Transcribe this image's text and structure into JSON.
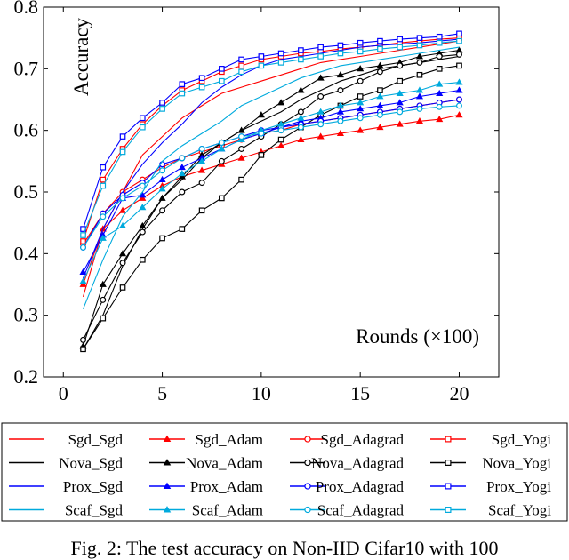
{
  "chart_data": {
    "type": "line",
    "ylabel": "Accuracy",
    "xlabel": "Rounds (×100)",
    "xlim": [
      -1,
      22
    ],
    "ylim": [
      0.2,
      0.8
    ],
    "xticks": [
      0,
      5,
      10,
      15,
      20
    ],
    "yticks": [
      0.2,
      0.3,
      0.4,
      0.5,
      0.6,
      0.7,
      0.8
    ],
    "grid": false,
    "legend_position": "bottom",
    "x": [
      1,
      2,
      3,
      4,
      5,
      6,
      7,
      8,
      9,
      10,
      11,
      12,
      13,
      14,
      15,
      16,
      17,
      18,
      19,
      20
    ],
    "series": [
      {
        "name": "Sgd_Sgd",
        "color": "#ff0000",
        "marker": "none",
        "values": [
          0.33,
          0.44,
          0.5,
          0.56,
          0.59,
          0.62,
          0.64,
          0.66,
          0.67,
          0.68,
          0.69,
          0.7,
          0.71,
          0.715,
          0.72,
          0.725,
          0.73,
          0.735,
          0.74,
          0.745
        ]
      },
      {
        "name": "Sgd_Adam",
        "color": "#ff0000",
        "marker": "triangle",
        "values": [
          0.35,
          0.44,
          0.47,
          0.49,
          0.51,
          0.525,
          0.535,
          0.545,
          0.555,
          0.565,
          0.575,
          0.585,
          0.59,
          0.595,
          0.6,
          0.605,
          0.61,
          0.615,
          0.618,
          0.625
        ]
      },
      {
        "name": "Sgd_Adagrad",
        "color": "#ff0000",
        "marker": "circle",
        "values": [
          0.415,
          0.465,
          0.5,
          0.52,
          0.54,
          0.555,
          0.565,
          0.575,
          0.585,
          0.595,
          0.6,
          0.61,
          0.615,
          0.62,
          0.625,
          0.63,
          0.635,
          0.64,
          0.645,
          0.65
        ]
      },
      {
        "name": "Sgd_Yogi",
        "color": "#ff0000",
        "marker": "square",
        "values": [
          0.42,
          0.52,
          0.57,
          0.61,
          0.64,
          0.665,
          0.68,
          0.695,
          0.705,
          0.715,
          0.72,
          0.725,
          0.728,
          0.732,
          0.735,
          0.738,
          0.742,
          0.745,
          0.748,
          0.75
        ]
      },
      {
        "name": "Nova_Sgd",
        "color": "#000000",
        "marker": "none",
        "values": [
          0.245,
          0.3,
          0.38,
          0.44,
          0.49,
          0.52,
          0.555,
          0.58,
          0.6,
          0.615,
          0.63,
          0.65,
          0.665,
          0.68,
          0.69,
          0.7,
          0.705,
          0.71,
          0.715,
          0.72
        ]
      },
      {
        "name": "Nova_Adam",
        "color": "#000000",
        "marker": "triangle",
        "values": [
          0.25,
          0.35,
          0.4,
          0.445,
          0.49,
          0.525,
          0.56,
          0.58,
          0.6,
          0.625,
          0.645,
          0.665,
          0.685,
          0.69,
          0.7,
          0.705,
          0.71,
          0.72,
          0.725,
          0.73
        ]
      },
      {
        "name": "Nova_Adagrad",
        "color": "#000000",
        "marker": "circle",
        "values": [
          0.26,
          0.325,
          0.385,
          0.435,
          0.47,
          0.5,
          0.515,
          0.55,
          0.57,
          0.59,
          0.61,
          0.63,
          0.655,
          0.665,
          0.68,
          0.695,
          0.705,
          0.71,
          0.72,
          0.723
        ]
      },
      {
        "name": "Nova_Yogi",
        "color": "#000000",
        "marker": "square",
        "values": [
          0.245,
          0.295,
          0.345,
          0.39,
          0.425,
          0.44,
          0.47,
          0.49,
          0.52,
          0.56,
          0.585,
          0.605,
          0.625,
          0.64,
          0.655,
          0.665,
          0.68,
          0.69,
          0.7,
          0.705
        ]
      },
      {
        "name": "Prox_Sgd",
        "color": "#0000ff",
        "marker": "none",
        "values": [
          0.36,
          0.44,
          0.5,
          0.545,
          0.58,
          0.61,
          0.645,
          0.67,
          0.69,
          0.705,
          0.715,
          0.72,
          0.725,
          0.73,
          0.735,
          0.738,
          0.74,
          0.742,
          0.745,
          0.748
        ]
      },
      {
        "name": "Prox_Adam",
        "color": "#0000ff",
        "marker": "triangle",
        "values": [
          0.37,
          0.43,
          0.49,
          0.495,
          0.52,
          0.54,
          0.555,
          0.57,
          0.585,
          0.595,
          0.605,
          0.615,
          0.62,
          0.63,
          0.635,
          0.64,
          0.645,
          0.655,
          0.66,
          0.665
        ]
      },
      {
        "name": "Prox_Adagrad",
        "color": "#0000ff",
        "marker": "circle",
        "values": [
          0.41,
          0.465,
          0.495,
          0.515,
          0.545,
          0.555,
          0.57,
          0.58,
          0.59,
          0.6,
          0.605,
          0.61,
          0.615,
          0.62,
          0.625,
          0.63,
          0.635,
          0.64,
          0.645,
          0.65
        ]
      },
      {
        "name": "Prox_Yogi",
        "color": "#0000ff",
        "marker": "square",
        "values": [
          0.44,
          0.54,
          0.59,
          0.62,
          0.645,
          0.675,
          0.685,
          0.7,
          0.715,
          0.72,
          0.725,
          0.73,
          0.735,
          0.738,
          0.742,
          0.745,
          0.748,
          0.75,
          0.752,
          0.757
        ]
      },
      {
        "name": "Scaf_Sgd",
        "color": "#00aadd",
        "marker": "none",
        "values": [
          0.31,
          0.39,
          0.46,
          0.5,
          0.55,
          0.575,
          0.595,
          0.615,
          0.64,
          0.655,
          0.67,
          0.685,
          0.695,
          0.705,
          0.71,
          0.715,
          0.72,
          0.725,
          0.73,
          0.735
        ]
      },
      {
        "name": "Scaf_Adam",
        "color": "#00aadd",
        "marker": "triangle",
        "values": [
          0.355,
          0.425,
          0.445,
          0.475,
          0.505,
          0.53,
          0.55,
          0.57,
          0.585,
          0.6,
          0.61,
          0.62,
          0.63,
          0.64,
          0.645,
          0.655,
          0.66,
          0.665,
          0.675,
          0.678
        ]
      },
      {
        "name": "Scaf_Adagrad",
        "color": "#00aadd",
        "marker": "circle",
        "values": [
          0.41,
          0.46,
          0.49,
          0.51,
          0.535,
          0.555,
          0.57,
          0.58,
          0.59,
          0.595,
          0.6,
          0.605,
          0.61,
          0.615,
          0.62,
          0.625,
          0.63,
          0.635,
          0.638,
          0.64
        ]
      },
      {
        "name": "Scaf_Yogi",
        "color": "#00aadd",
        "marker": "square",
        "values": [
          0.43,
          0.51,
          0.565,
          0.605,
          0.635,
          0.66,
          0.67,
          0.68,
          0.695,
          0.705,
          0.71,
          0.715,
          0.72,
          0.725,
          0.728,
          0.732,
          0.735,
          0.738,
          0.742,
          0.745
        ]
      }
    ]
  },
  "caption": "Fig. 2: The test accuracy on Non-IID Cifar10 with 100"
}
